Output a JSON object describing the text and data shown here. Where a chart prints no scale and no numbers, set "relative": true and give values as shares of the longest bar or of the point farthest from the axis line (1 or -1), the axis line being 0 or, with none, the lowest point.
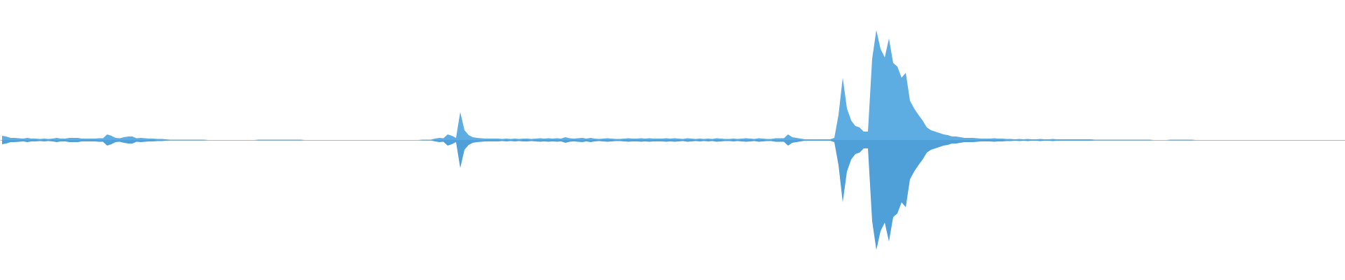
{
  "chart_data": {
    "type": "area",
    "relative": true,
    "categories": [
      null,
      null,
      null,
      null,
      null,
      null,
      null,
      null,
      null,
      null,
      null,
      null,
      null,
      null,
      null,
      null,
      null,
      null,
      null,
      null,
      null,
      null,
      null,
      null,
      null,
      null,
      null,
      null,
      null,
      null,
      null,
      null,
      null,
      null,
      null,
      null,
      null,
      null,
      null,
      null,
      null,
      null,
      null,
      null,
      null,
      null,
      null,
      null,
      null,
      null,
      null,
      null,
      null,
      null,
      null,
      null,
      null,
      null,
      null,
      null,
      null,
      null,
      null,
      null,
      null,
      null,
      null,
      null,
      null,
      null,
      null,
      null,
      null,
      null,
      null,
      null,
      null,
      null,
      null,
      null,
      null,
      null,
      null,
      null,
      null,
      null,
      null,
      null,
      null,
      null,
      null,
      null,
      null,
      null,
      null,
      null,
      null,
      null,
      null,
      null,
      null,
      null,
      null,
      null,
      null,
      null,
      null,
      null,
      null,
      null,
      null,
      null,
      null,
      null,
      null,
      null,
      null,
      null,
      null,
      null,
      null,
      null,
      null,
      null,
      null,
      null,
      null,
      null,
      null,
      null,
      null,
      null,
      null,
      null,
      null,
      null,
      null,
      null,
      null,
      null,
      null,
      null,
      null,
      null,
      null,
      null,
      null,
      null,
      null,
      null,
      null,
      null,
      null,
      null,
      null,
      null,
      null,
      null,
      null,
      null,
      null,
      null,
      null,
      null,
      null,
      null,
      null,
      null,
      null,
      null,
      null,
      null,
      null,
      null,
      null,
      null,
      null,
      null,
      null,
      null,
      null,
      null,
      null,
      null,
      null,
      null,
      null,
      null,
      null,
      null,
      null,
      null,
      null,
      null,
      null,
      null,
      null,
      null,
      null,
      null,
      null,
      null,
      null,
      null,
      null,
      null,
      null,
      null,
      null,
      null,
      null,
      null,
      null,
      null,
      null,
      null,
      null,
      null,
      null,
      null,
      null,
      null,
      null,
      null,
      null,
      null,
      null,
      null,
      null,
      null,
      null,
      null,
      null,
      null,
      null,
      null,
      null,
      null,
      null,
      null,
      null,
      null,
      null,
      null,
      null,
      null,
      null,
      null,
      null,
      null,
      null,
      null,
      null,
      null,
      null,
      null,
      null,
      null,
      null,
      null,
      null,
      null,
      null,
      null,
      null,
      null,
      null,
      null,
      null,
      null,
      null,
      null,
      null,
      null,
      null,
      null,
      null,
      null,
      null,
      null,
      null,
      null,
      null,
      null,
      null,
      null,
      null,
      null,
      null,
      null,
      null,
      null,
      null,
      null,
      null,
      null,
      null,
      null,
      null,
      null,
      null,
      null,
      null,
      null,
      null,
      null,
      null,
      null,
      null,
      null,
      null,
      null,
      null,
      null,
      null,
      null,
      null,
      null,
      null,
      null
    ],
    "series": [
      {
        "color": "#5dade2",
        "values": [
          0.038,
          0.032,
          0.019,
          0.019,
          0.016,
          0.013,
          0.019,
          0.013,
          0.013,
          0.01,
          0.013,
          0.01,
          0.013,
          0.019,
          0.013,
          0.013,
          0.019,
          0.019,
          0.019,
          0.013,
          0.013,
          0.013,
          0.013,
          0.016,
          0.016,
          0.051,
          0.038,
          0.019,
          0.016,
          0.025,
          0.032,
          0.032,
          0.016,
          0.019,
          0.016,
          0.013,
          0.013,
          0.01,
          0.01,
          0.006,
          0.003,
          0.003,
          0.003,
          0.003,
          0.003,
          0.003,
          0.003,
          0.003,
          0.003,
          0,
          0,
          0,
          0,
          0,
          0,
          0,
          0,
          0,
          0,
          0,
          0,
          0.003,
          0.003,
          0.003,
          0.003,
          0.003,
          0.003,
          0.003,
          0.003,
          0.003,
          0.003,
          0.003,
          0,
          0,
          0,
          0,
          0,
          0,
          0,
          0,
          0,
          0,
          0,
          0,
          0,
          0,
          0,
          0,
          0,
          0,
          0,
          0,
          0,
          0,
          0,
          0,
          0,
          0,
          0,
          0,
          0.003,
          0.003,
          0.003,
          0.013,
          0.019,
          0.016,
          0.051,
          0.038,
          0.019,
          0.255,
          0.089,
          0.045,
          0.025,
          0.019,
          0.016,
          0.013,
          0.013,
          0.013,
          0.013,
          0.01,
          0.013,
          0.01,
          0.013,
          0.01,
          0.013,
          0.013,
          0.01,
          0.013,
          0.016,
          0.013,
          0.016,
          0.013,
          0.016,
          0.013,
          0.025,
          0.016,
          0.013,
          0.016,
          0.019,
          0.013,
          0.019,
          0.013,
          0.01,
          0.013,
          0.016,
          0.013,
          0.01,
          0.01,
          0.013,
          0.016,
          0.013,
          0.013,
          0.016,
          0.013,
          0.016,
          0.013,
          0.013,
          0.013,
          0.016,
          0.013,
          0.016,
          0.013,
          0.01,
          0.016,
          0.013,
          0.01,
          0.013,
          0.01,
          0.013,
          0.01,
          0.016,
          0.013,
          0.01,
          0.01,
          0.013,
          0.01,
          0.013,
          0.016,
          0.013,
          0.01,
          0.016,
          0.013,
          0.01,
          0.01,
          0.016,
          0.016,
          0.016,
          0.051,
          0.025,
          0.019,
          0.013,
          0.006,
          0.006,
          0.006,
          0.006,
          0.006,
          0.006,
          0.006,
          0.019,
          0.229,
          0.567,
          0.287,
          0.178,
          0.127,
          0.115,
          0.076,
          0.076,
          0.739,
          1,
          0.828,
          0.752,
          0.924,
          0.701,
          0.669,
          0.567,
          0.611,
          0.357,
          0.287,
          0.229,
          0.178,
          0.115,
          0.089,
          0.076,
          0.064,
          0.051,
          0.045,
          0.032,
          0.032,
          0.025,
          0.019,
          0.019,
          0.019,
          0.016,
          0.013,
          0.013,
          0.013,
          0.016,
          0.013,
          0.013,
          0.01,
          0.01,
          0.006,
          0.01,
          0.006,
          0.01,
          0.006,
          0.006,
          0.01,
          0.006,
          0.006,
          0.01,
          0.006,
          0.006,
          0.006,
          0.006,
          0.006,
          0.006,
          0.006,
          0.006,
          0.006,
          0.003,
          0.003,
          0.003,
          0.003,
          0.003,
          0.003,
          0.003,
          0.003,
          0.003,
          0.003,
          0.003,
          0.003,
          0.003,
          0.003,
          0,
          0,
          0,
          0,
          0.003,
          0.003,
          0.003,
          0.003,
          0.003,
          0.003,
          0,
          0,
          0,
          0,
          0,
          0,
          0,
          0,
          0,
          0,
          0,
          0,
          0,
          0,
          0,
          0,
          0,
          0,
          0,
          0,
          0,
          0,
          0,
          0,
          0,
          0,
          0,
          0,
          0,
          0,
          0,
          0,
          0,
          0,
          0,
          0
        ]
      },
      {
        "color": "#4f9fd9",
        "values": [
          -0.038,
          -0.032,
          -0.019,
          -0.019,
          -0.016,
          -0.013,
          -0.019,
          -0.013,
          -0.013,
          -0.01,
          -0.013,
          -0.01,
          -0.013,
          -0.019,
          -0.013,
          -0.013,
          -0.019,
          -0.019,
          -0.019,
          -0.013,
          -0.013,
          -0.013,
          -0.013,
          -0.016,
          -0.016,
          -0.051,
          -0.038,
          -0.019,
          -0.016,
          -0.025,
          -0.032,
          -0.032,
          -0.016,
          -0.019,
          -0.016,
          -0.013,
          -0.013,
          -0.01,
          -0.01,
          -0.006,
          -0.003,
          -0.003,
          -0.003,
          -0.003,
          -0.003,
          -0.003,
          -0.003,
          -0.003,
          -0.003,
          0,
          0,
          0,
          0,
          0,
          0,
          0,
          0,
          0,
          0,
          0,
          0,
          -0.003,
          -0.003,
          -0.003,
          -0.003,
          -0.003,
          -0.003,
          -0.003,
          -0.003,
          -0.003,
          -0.003,
          -0.003,
          0,
          0,
          0,
          0,
          0,
          0,
          0,
          0,
          0,
          0,
          0,
          0,
          0,
          0,
          0,
          0,
          0,
          0,
          0,
          0,
          0,
          0,
          0,
          0,
          0,
          0,
          0,
          0,
          -0.003,
          -0.003,
          -0.003,
          -0.013,
          -0.019,
          -0.016,
          -0.051,
          -0.038,
          -0.019,
          -0.255,
          -0.089,
          -0.045,
          -0.025,
          -0.019,
          -0.016,
          -0.013,
          -0.013,
          -0.013,
          -0.013,
          -0.01,
          -0.013,
          -0.01,
          -0.013,
          -0.01,
          -0.013,
          -0.013,
          -0.01,
          -0.013,
          -0.016,
          -0.013,
          -0.016,
          -0.013,
          -0.016,
          -0.013,
          -0.025,
          -0.016,
          -0.013,
          -0.016,
          -0.019,
          -0.013,
          -0.019,
          -0.013,
          -0.01,
          -0.013,
          -0.016,
          -0.013,
          -0.01,
          -0.01,
          -0.013,
          -0.016,
          -0.013,
          -0.013,
          -0.016,
          -0.013,
          -0.016,
          -0.013,
          -0.013,
          -0.013,
          -0.016,
          -0.013,
          -0.016,
          -0.013,
          -0.01,
          -0.016,
          -0.013,
          -0.01,
          -0.013,
          -0.01,
          -0.013,
          -0.01,
          -0.016,
          -0.013,
          -0.01,
          -0.01,
          -0.013,
          -0.01,
          -0.013,
          -0.016,
          -0.013,
          -0.01,
          -0.016,
          -0.013,
          -0.01,
          -0.01,
          -0.016,
          -0.016,
          -0.016,
          -0.051,
          -0.025,
          -0.019,
          -0.013,
          -0.006,
          -0.006,
          -0.006,
          -0.006,
          -0.006,
          -0.006,
          -0.006,
          -0.019,
          -0.229,
          -0.567,
          -0.287,
          -0.178,
          -0.127,
          -0.115,
          -0.076,
          -0.076,
          -0.739,
          -1,
          -0.828,
          -0.752,
          -0.924,
          -0.701,
          -0.669,
          -0.567,
          -0.611,
          -0.357,
          -0.287,
          -0.229,
          -0.178,
          -0.115,
          -0.089,
          -0.076,
          -0.064,
          -0.051,
          -0.045,
          -0.032,
          -0.032,
          -0.025,
          -0.019,
          -0.019,
          -0.019,
          -0.016,
          -0.013,
          -0.013,
          -0.013,
          -0.016,
          -0.013,
          -0.013,
          -0.01,
          -0.01,
          -0.006,
          -0.01,
          -0.006,
          -0.01,
          -0.006,
          -0.006,
          -0.01,
          -0.006,
          -0.006,
          -0.01,
          -0.006,
          -0.006,
          -0.006,
          -0.006,
          -0.006,
          -0.006,
          -0.006,
          -0.006,
          -0.006,
          -0.003,
          -0.003,
          -0.003,
          -0.003,
          -0.003,
          -0.003,
          -0.003,
          -0.003,
          -0.003,
          -0.003,
          -0.003,
          -0.003,
          -0.003,
          -0.003,
          0,
          0,
          0,
          0,
          -0.003,
          -0.003,
          -0.003,
          -0.003,
          -0.003,
          -0.003,
          0,
          0,
          0,
          0,
          0,
          0,
          0,
          0,
          0,
          0,
          0,
          0,
          0,
          0,
          0,
          0,
          0,
          0,
          0,
          0,
          0,
          0,
          0,
          0,
          0,
          0,
          0,
          0,
          0,
          0,
          0,
          0,
          0,
          0,
          0,
          0
        ]
      }
    ]
  }
}
